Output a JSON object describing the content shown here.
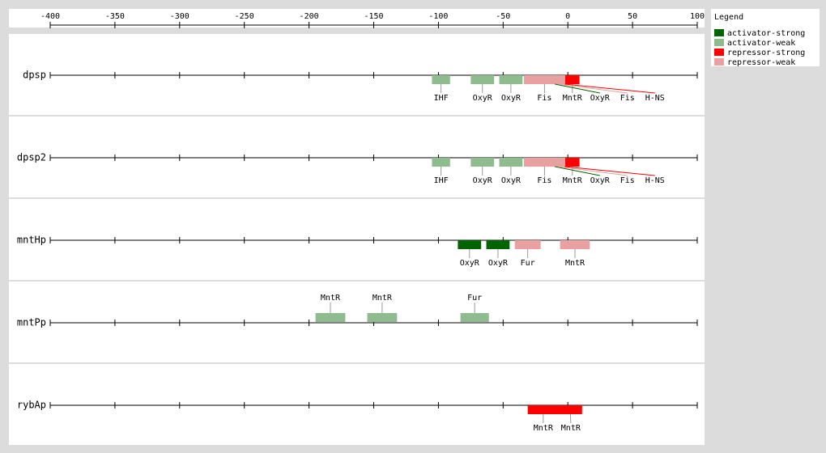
{
  "chart_data": {
    "type": "sites",
    "xlim": [
      -400,
      100
    ],
    "xticks": [
      -400,
      -350,
      -300,
      -250,
      -200,
      -150,
      -100,
      -50,
      0,
      50,
      100
    ],
    "legend_title": "Legend",
    "legend": [
      {
        "name": "activator-strong",
        "color": "#006400"
      },
      {
        "name": "activator-weak",
        "color": "#8fbc8f"
      },
      {
        "name": "repressor-strong",
        "color": "#ff0000"
      },
      {
        "name": "repressor-weak",
        "color": "#e8a0a0"
      }
    ],
    "rows": [
      {
        "name": "dpsp",
        "sites": [
          {
            "label": "IHF",
            "class": "activator-weak",
            "start": -105,
            "end": -91
          },
          {
            "label": "OxyR",
            "class": "activator-weak",
            "start": -75,
            "end": -57
          },
          {
            "label": "OxyR",
            "class": "activator-weak",
            "start": -53,
            "end": -35
          },
          {
            "label": "Fis",
            "class": "repressor-weak",
            "start": -34,
            "end": -2
          },
          {
            "label": "MntR",
            "class": "repressor-strong",
            "start": -2,
            "end": 9
          },
          {
            "label": "OxyR",
            "class": "activator-strong",
            "start": -20,
            "end": 0
          },
          {
            "label": "Fis",
            "class": "repressor-weak",
            "start": -15,
            "end": 0
          },
          {
            "label": "H-NS",
            "class": "repressor-strong",
            "start": -10,
            "end": 5
          }
        ]
      },
      {
        "name": "dpsp2",
        "sites": [
          {
            "label": "IHF",
            "class": "activator-weak",
            "start": -105,
            "end": -91
          },
          {
            "label": "OxyR",
            "class": "activator-weak",
            "start": -75,
            "end": -57
          },
          {
            "label": "OxyR",
            "class": "activator-weak",
            "start": -53,
            "end": -35
          },
          {
            "label": "Fis",
            "class": "repressor-weak",
            "start": -34,
            "end": -2
          },
          {
            "label": "MntR",
            "class": "repressor-strong",
            "start": -2,
            "end": 9
          },
          {
            "label": "OxyR",
            "class": "activator-strong",
            "start": -20,
            "end": 0
          },
          {
            "label": "Fis",
            "class": "repressor-weak",
            "start": -15,
            "end": 0
          },
          {
            "label": "H-NS",
            "class": "repressor-strong",
            "start": -10,
            "end": 5
          }
        ]
      },
      {
        "name": "mntHp",
        "sites": [
          {
            "label": "OxyR",
            "class": "activator-strong",
            "start": -85,
            "end": -67
          },
          {
            "label": "OxyR",
            "class": "activator-strong",
            "start": -63,
            "end": -45
          },
          {
            "label": "Fur",
            "class": "repressor-weak",
            "start": -41,
            "end": -21
          },
          {
            "label": "MntR",
            "class": "repressor-weak",
            "start": -6,
            "end": 17
          }
        ]
      },
      {
        "name": "mntPp",
        "sites": [
          {
            "label": "MntR",
            "class": "activator-weak",
            "start": -195,
            "end": -172
          },
          {
            "label": "MntR",
            "class": "activator-weak",
            "start": -155,
            "end": -132
          },
          {
            "label": "Fur",
            "class": "activator-weak",
            "start": -83,
            "end": -61
          }
        ]
      },
      {
        "name": "rybAp",
        "sites": [
          {
            "label": "MntR",
            "class": "repressor-strong",
            "start": -31,
            "end": -7
          },
          {
            "label": "MntR",
            "class": "repressor-strong",
            "start": -7,
            "end": 11
          }
        ]
      }
    ]
  }
}
